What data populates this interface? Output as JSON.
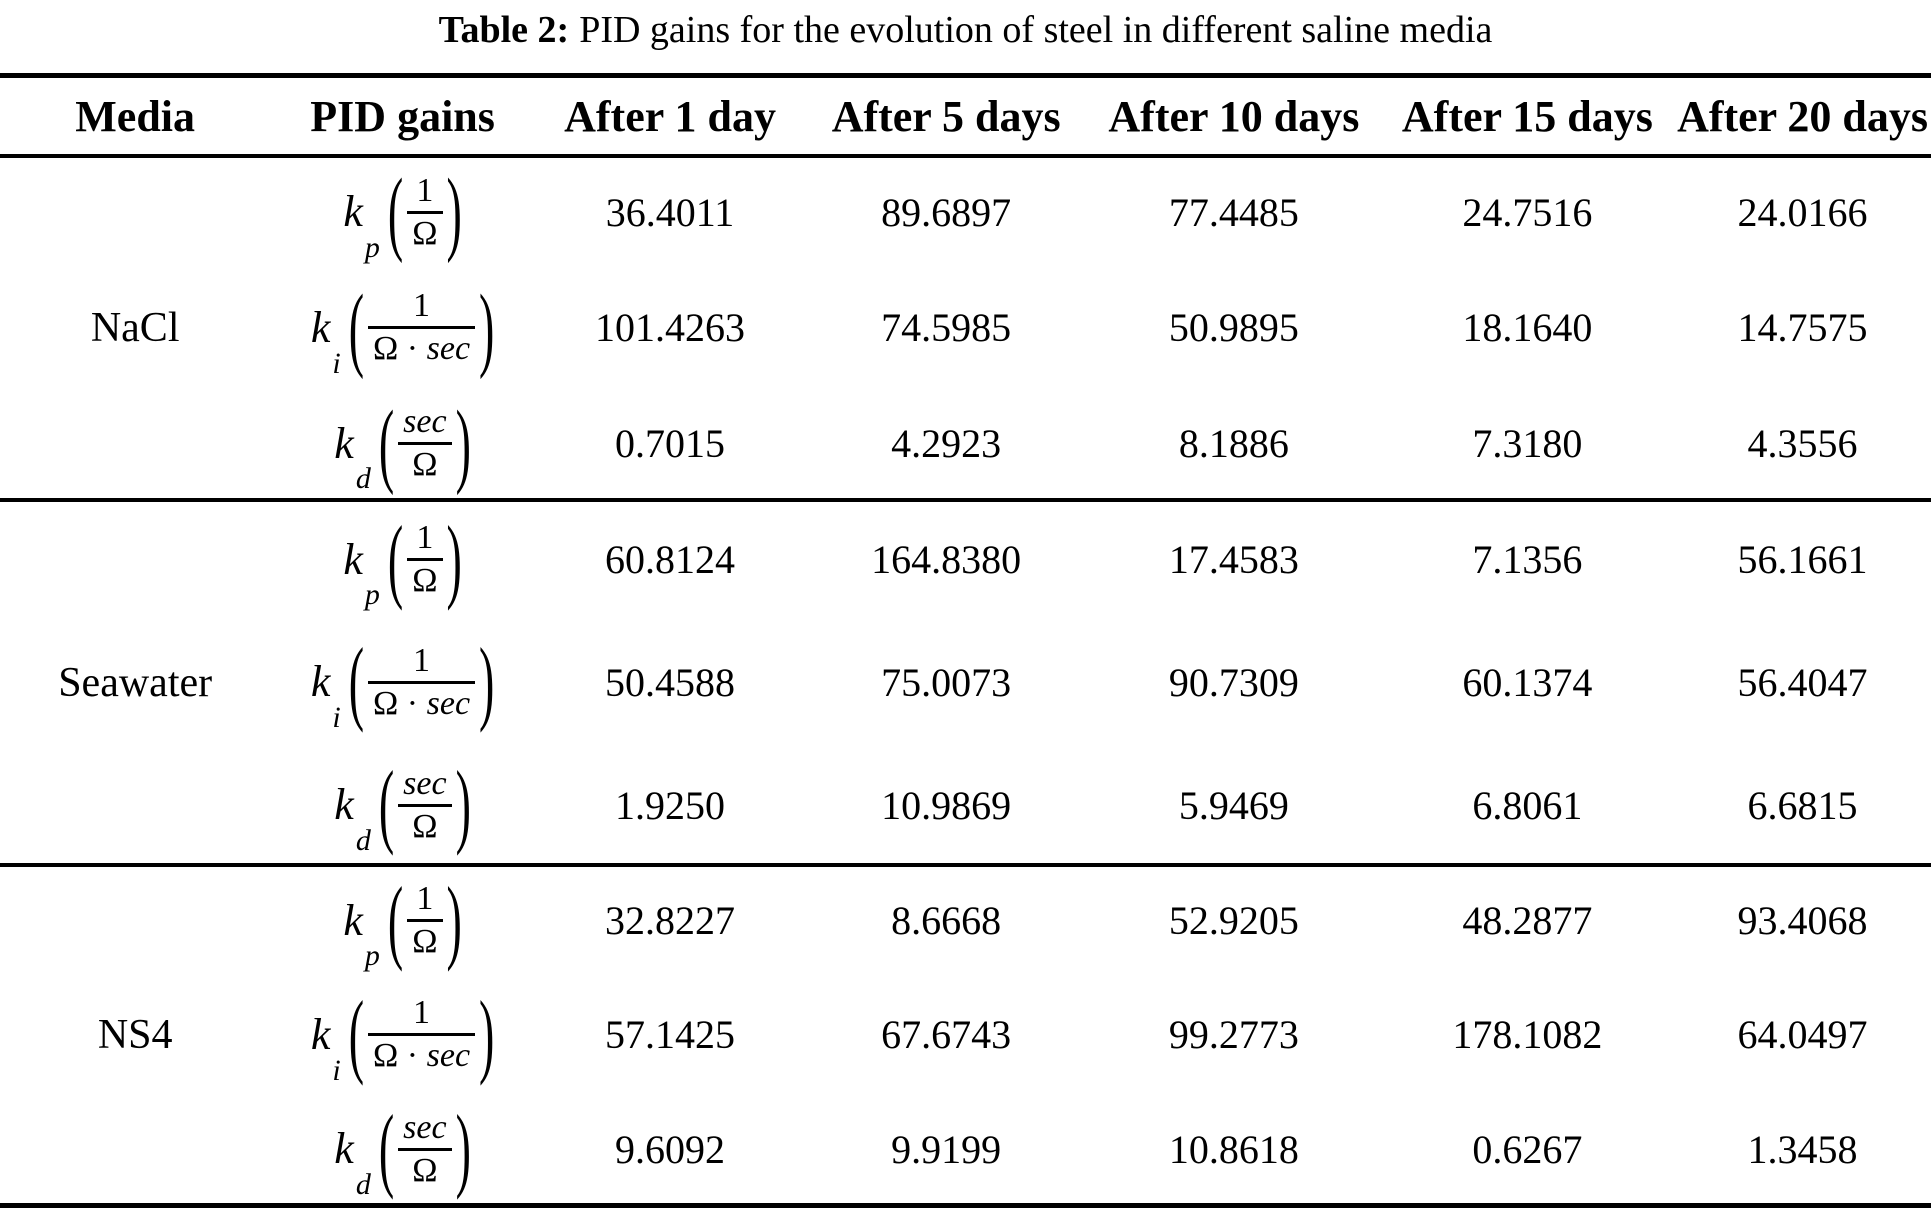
{
  "caption": {
    "label": "Table 2:",
    "text": "PID gains for the evolution of steel in different saline media"
  },
  "table": {
    "headers": [
      "Media",
      "PID gains",
      "After 1 day",
      "After 5 days",
      "After 10 days",
      "After 15 days",
      "After 20 days"
    ],
    "groups": [
      {
        "media": "NaCl",
        "rows": [
          {
            "formula": {
              "base": "k",
              "sub": "p",
              "num": [
                {
                  "text": "1",
                  "italic": false
                }
              ],
              "den": [
                {
                  "text": "Ω",
                  "italic": false
                }
              ]
            },
            "values": [
              "36.4011",
              "89.6897",
              "77.4485",
              "24.7516",
              "24.0166"
            ]
          },
          {
            "formula": {
              "base": "k",
              "sub": "i",
              "num": [
                {
                  "text": "1",
                  "italic": false
                }
              ],
              "den": [
                {
                  "text": "Ω",
                  "italic": false
                },
                {
                  "text": " · ",
                  "italic": false
                },
                {
                  "text": "sec",
                  "italic": true
                }
              ]
            },
            "values": [
              "101.4263",
              "74.5985",
              "50.9895",
              "18.1640",
              "14.7575"
            ]
          },
          {
            "formula": {
              "base": "k",
              "sub": "d",
              "num": [
                {
                  "text": "sec",
                  "italic": true
                }
              ],
              "den": [
                {
                  "text": "Ω",
                  "italic": false
                }
              ]
            },
            "values": [
              "0.7015",
              "4.2923",
              "8.1886",
              "7.3180",
              "4.3556"
            ]
          }
        ]
      },
      {
        "media": "Seawater",
        "rows": [
          {
            "formula": {
              "base": "k",
              "sub": "p",
              "num": [
                {
                  "text": "1",
                  "italic": false
                }
              ],
              "den": [
                {
                  "text": "Ω",
                  "italic": false
                }
              ]
            },
            "values": [
              "60.8124",
              "164.8380",
              "17.4583",
              "7.1356",
              "56.1661"
            ]
          },
          {
            "formula": {
              "base": "k",
              "sub": "i",
              "num": [
                {
                  "text": "1",
                  "italic": false
                }
              ],
              "den": [
                {
                  "text": "Ω",
                  "italic": false
                },
                {
                  "text": " · ",
                  "italic": false
                },
                {
                  "text": "sec",
                  "italic": true
                }
              ]
            },
            "values": [
              "50.4588",
              "75.0073",
              "90.7309",
              "60.1374",
              "56.4047"
            ]
          },
          {
            "formula": {
              "base": "k",
              "sub": "d",
              "num": [
                {
                  "text": "sec",
                  "italic": true
                }
              ],
              "den": [
                {
                  "text": "Ω",
                  "italic": false
                }
              ]
            },
            "values": [
              "1.9250",
              "10.9869",
              "5.9469",
              "6.8061",
              "6.6815"
            ]
          }
        ]
      },
      {
        "media": "NS4",
        "rows": [
          {
            "formula": {
              "base": "k",
              "sub": "p",
              "num": [
                {
                  "text": "1",
                  "italic": false
                }
              ],
              "den": [
                {
                  "text": "Ω",
                  "italic": false
                }
              ]
            },
            "values": [
              "32.8227",
              "8.6668",
              "52.9205",
              "48.2877",
              "93.4068"
            ]
          },
          {
            "formula": {
              "base": "k",
              "sub": "i",
              "num": [
                {
                  "text": "1",
                  "italic": false
                }
              ],
              "den": [
                {
                  "text": "Ω",
                  "italic": false
                },
                {
                  "text": " · ",
                  "italic": false
                },
                {
                  "text": "sec",
                  "italic": true
                }
              ]
            },
            "values": [
              "57.1425",
              "67.6743",
              "99.2773",
              "178.1082",
              "64.0497"
            ]
          },
          {
            "formula": {
              "base": "k",
              "sub": "d",
              "num": [
                {
                  "text": "sec",
                  "italic": true
                }
              ],
              "den": [
                {
                  "text": "Ω",
                  "italic": false
                }
              ]
            },
            "values": [
              "9.6092",
              "9.9199",
              "10.8618",
              "0.6267",
              "1.3458"
            ]
          }
        ]
      }
    ]
  }
}
